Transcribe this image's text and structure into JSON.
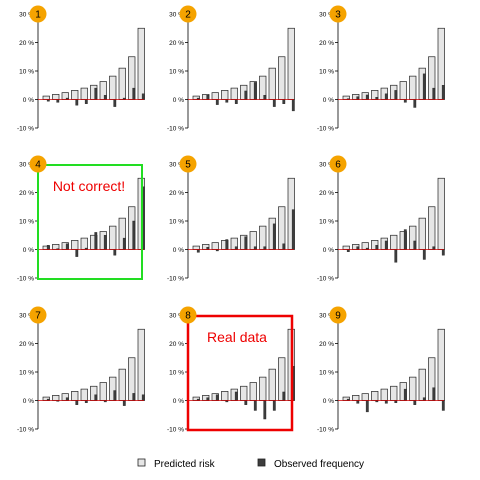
{
  "colors": {
    "predicted_fill": "#e6e6e6",
    "observed_fill": "#3d3d3d",
    "bar_stroke": "#222222",
    "zero_line": "#cc0000",
    "badge": "#f5a300",
    "wrong_box": "#22dd22",
    "real_box": "#ee0000"
  },
  "chart_data": {
    "type": "bar",
    "ylim": [
      -10,
      30
    ],
    "yticks": [
      "30 %",
      "20 %",
      "10 %",
      "0 %",
      "-10 %"
    ],
    "ytick_values": [
      30,
      20,
      10,
      0,
      -10
    ],
    "predicted": [
      1.2,
      1.8,
      2.4,
      3.2,
      4.0,
      5.0,
      6.3,
      8.2,
      11.0,
      15.0,
      25.0
    ],
    "legend": {
      "predicted_label": "Predicted risk",
      "observed_label": "Observed frequency",
      "placement": "bottom"
    },
    "panels": [
      {
        "badge": "1",
        "observed": [
          -0.6,
          -1.0,
          0.5,
          -2.0,
          -1.5,
          4.0,
          1.5,
          -2.5,
          0.5,
          4.0,
          2.0
        ]
      },
      {
        "badge": "2",
        "observed": [
          0.5,
          1.5,
          -1.8,
          -1.0,
          -1.5,
          3.0,
          6.0,
          1.5,
          -2.5,
          -1.5,
          -4.0
        ]
      },
      {
        "badge": "3",
        "observed": [
          0.3,
          1.0,
          1.6,
          0.8,
          2.0,
          3.2,
          -1.0,
          -2.8,
          9.0,
          4.0,
          5.0
        ]
      },
      {
        "badge": "4",
        "annotation": "Not correct!",
        "highlight": "wrong",
        "observed": [
          1.5,
          0.3,
          2.0,
          -2.5,
          0.5,
          6.0,
          5.0,
          -2.0,
          4.0,
          10.0,
          22.0
        ]
      },
      {
        "badge": "5",
        "observed": [
          -1.0,
          0.8,
          -0.5,
          3.5,
          1.0,
          4.5,
          1.0,
          1.0,
          9.0,
          2.0,
          14.0
        ]
      },
      {
        "badge": "6",
        "observed": [
          -0.8,
          1.0,
          0.5,
          1.5,
          3.0,
          -4.5,
          7.0,
          3.0,
          -3.5,
          1.0,
          -2.0
        ]
      },
      {
        "badge": "7",
        "observed": [
          0.5,
          -0.3,
          1.0,
          -1.5,
          -0.8,
          2.0,
          -0.5,
          3.5,
          -1.8,
          2.5,
          2.0
        ]
      },
      {
        "badge": "8",
        "annotation": "Real data",
        "highlight": "real",
        "observed": [
          0.5,
          1.0,
          2.0,
          -0.5,
          3.0,
          -1.5,
          -3.5,
          -6.5,
          -3.5,
          3.0,
          12.0
        ]
      },
      {
        "badge": "9",
        "observed": [
          0.5,
          -1.0,
          -4.0,
          -0.5,
          -1.0,
          -0.8,
          4.0,
          -1.5,
          1.0,
          4.5,
          -3.5
        ]
      }
    ]
  }
}
